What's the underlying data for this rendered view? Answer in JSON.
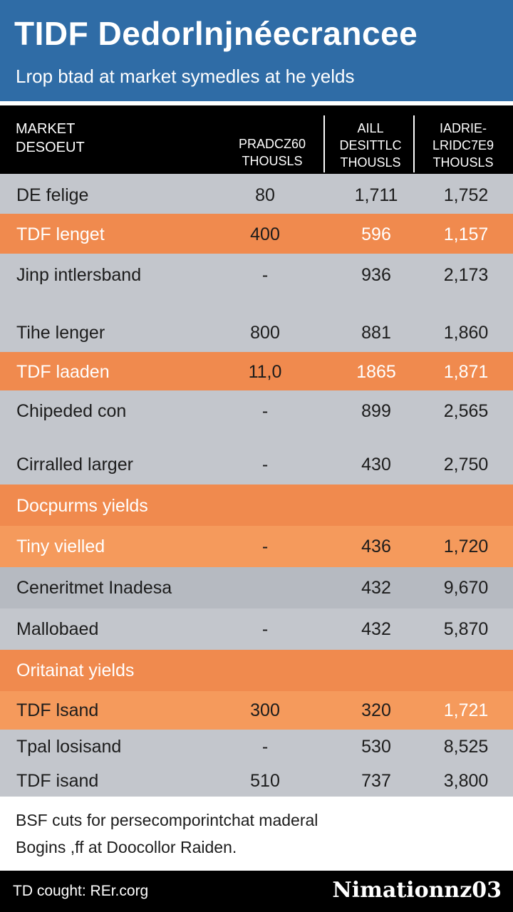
{
  "header": {
    "title": "TIDF Dedorlnjnéecrancee",
    "subtitle": "Lrop btad at market symedles at he yelds"
  },
  "columns": {
    "c1": "MARKET\nDESOEUT",
    "c2": "PRADCZ60\nTHOUSLS",
    "c3": "AILL\nDESITTLC\nTHOUSLS",
    "c4": "IADRIE-\nLRIDC7E9\nTHOUSLS"
  },
  "rows": [
    {
      "label": "DE felige",
      "c2": "80",
      "c3": "1,711",
      "c4": "1,752"
    },
    {
      "label": "TDF lenget",
      "c2": "400",
      "c3": "596",
      "c4": "1,157"
    },
    {
      "label": "Jinp intlersband",
      "c2": "-",
      "c3": "936",
      "c4": "2,173"
    },
    {
      "label": "Tihe lenger",
      "c2": "800",
      "c3": "881",
      "c4": "1,860"
    },
    {
      "label": "TDF laaden",
      "c2": "11,0",
      "c3": "1865",
      "c4": "1,871"
    },
    {
      "label": "Chipeded con",
      "c2": "-",
      "c3": "899",
      "c4": "2,565"
    },
    {
      "label": "Cirralled larger",
      "c2": "-",
      "c3": "430",
      "c4": "2,750"
    },
    {
      "label": "Docpurms yields"
    },
    {
      "label": "Tiny vielled",
      "c2": "-",
      "c3": "436",
      "c4": "1,720"
    },
    {
      "label": "Ceneritmet Inadesa",
      "c2": "",
      "c3": "432",
      "c4": "9,670"
    },
    {
      "label": "Mallobaed",
      "c2": "-",
      "c3": "432",
      "c4": "5,870"
    },
    {
      "label": "Oritainat yields"
    },
    {
      "label": "TDF lsand",
      "c2": "300",
      "c3": "320",
      "c4": "1,721"
    },
    {
      "label": "Tpal losisand",
      "c2": "-",
      "c3": "530",
      "c4": "8,525"
    },
    {
      "label": "TDF isand",
      "c2": "510",
      "c3": "737",
      "c4": "3,800"
    }
  ],
  "footer": {
    "line1": "BSF cuts for persecomporintchat maderal",
    "line2": "Bogins ,ff at Doocollor Raiden."
  },
  "bottom_bar": {
    "source": "TD cought: REr.corg",
    "logo": "Nimationnz03"
  },
  "colors": {
    "header_blue": "#2f6ca6",
    "row_orange": "#f08a4e",
    "row_gray": "#c3c6cc"
  }
}
